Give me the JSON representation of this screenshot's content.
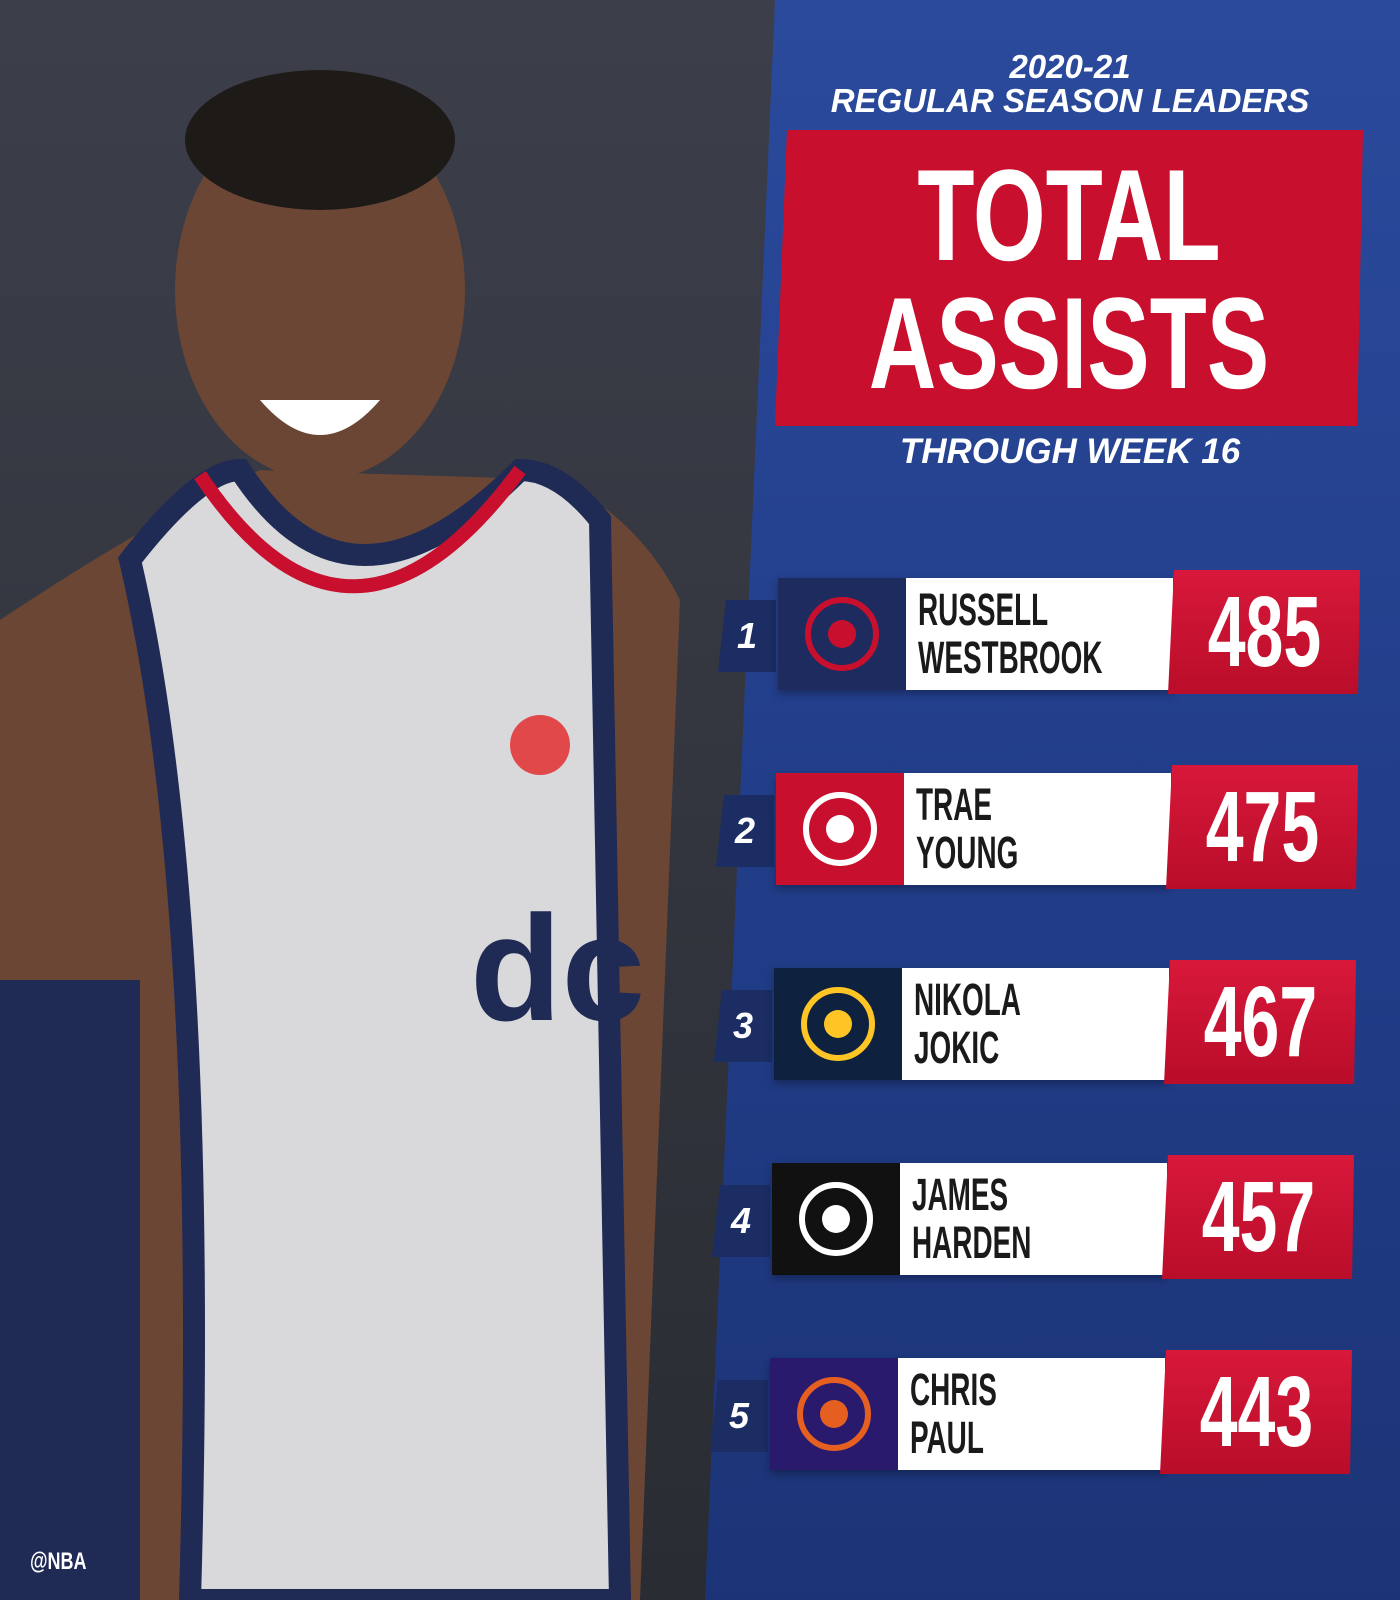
{
  "header": {
    "season": "2020-21",
    "subtitle": "REGULAR SEASON LEADERS",
    "title_lines": [
      "TOTAL",
      "ASSISTS"
    ],
    "note": "THROUGH WEEK 16"
  },
  "leaders": [
    {
      "rank": 1,
      "name_lines": [
        "RUSSELL",
        "WESTBROOK"
      ],
      "value": 485
    },
    {
      "rank": 2,
      "name_lines": [
        "TRAE",
        "YOUNG"
      ],
      "value": 475
    },
    {
      "rank": 3,
      "name_lines": [
        "NIKOLA",
        "JOKIC"
      ],
      "value": 467
    },
    {
      "rank": 4,
      "name_lines": [
        "JAMES",
        "HARDEN"
      ],
      "value": 457
    },
    {
      "rank": 5,
      "name_lines": [
        "CHRIS",
        "PAUL"
      ],
      "value": 443
    }
  ],
  "credit": "@NBA"
}
